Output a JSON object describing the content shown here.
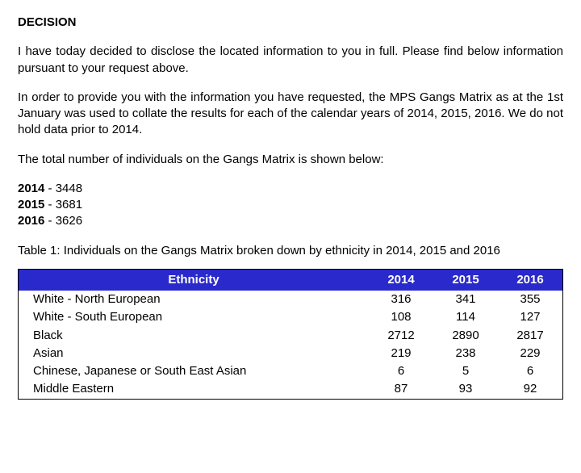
{
  "heading": "DECISION",
  "paragraphs": {
    "p1": "I have today decided to disclose the located information to you in full. Please find below information pursuant to your request above.",
    "p2": "In order to provide you with the information you have requested, the MPS Gangs Matrix as at the 1st January was used to collate the results for each of the calendar years of 2014, 2015, 2016. We do not hold data prior to 2014.",
    "p3": "The total number of individuals on the Gangs Matrix is shown below:"
  },
  "totals": [
    {
      "year": "2014",
      "value": "3448"
    },
    {
      "year": "2015",
      "value": "3681"
    },
    {
      "year": "2016",
      "value": "3626"
    }
  ],
  "table": {
    "caption": "Table 1: Individuals on the Gangs Matrix broken down by ethnicity in 2014, 2015 and 2016",
    "columns": [
      "Ethnicity",
      "2014",
      "2015",
      "2016"
    ],
    "rows": [
      [
        "White - North European",
        "316",
        "341",
        "355"
      ],
      [
        "White - South European",
        "108",
        "114",
        "127"
      ],
      [
        "Black",
        "2712",
        "2890",
        "2817"
      ],
      [
        "Asian",
        "219",
        "238",
        "229"
      ],
      [
        "Chinese, Japanese or South East Asian",
        "6",
        "5",
        "6"
      ],
      [
        "Middle Eastern",
        "87",
        "93",
        "92"
      ]
    ],
    "header_bg": "#2929cc",
    "header_fg": "#ffffff",
    "border_color": "#000000",
    "cell_fontsize": 15,
    "col_align": [
      "left",
      "center",
      "center",
      "center"
    ]
  },
  "colors": {
    "text": "#000000",
    "background": "#ffffff"
  },
  "typography": {
    "body_fontsize": 15,
    "heading_weight": "bold",
    "font_family": "Arial"
  }
}
